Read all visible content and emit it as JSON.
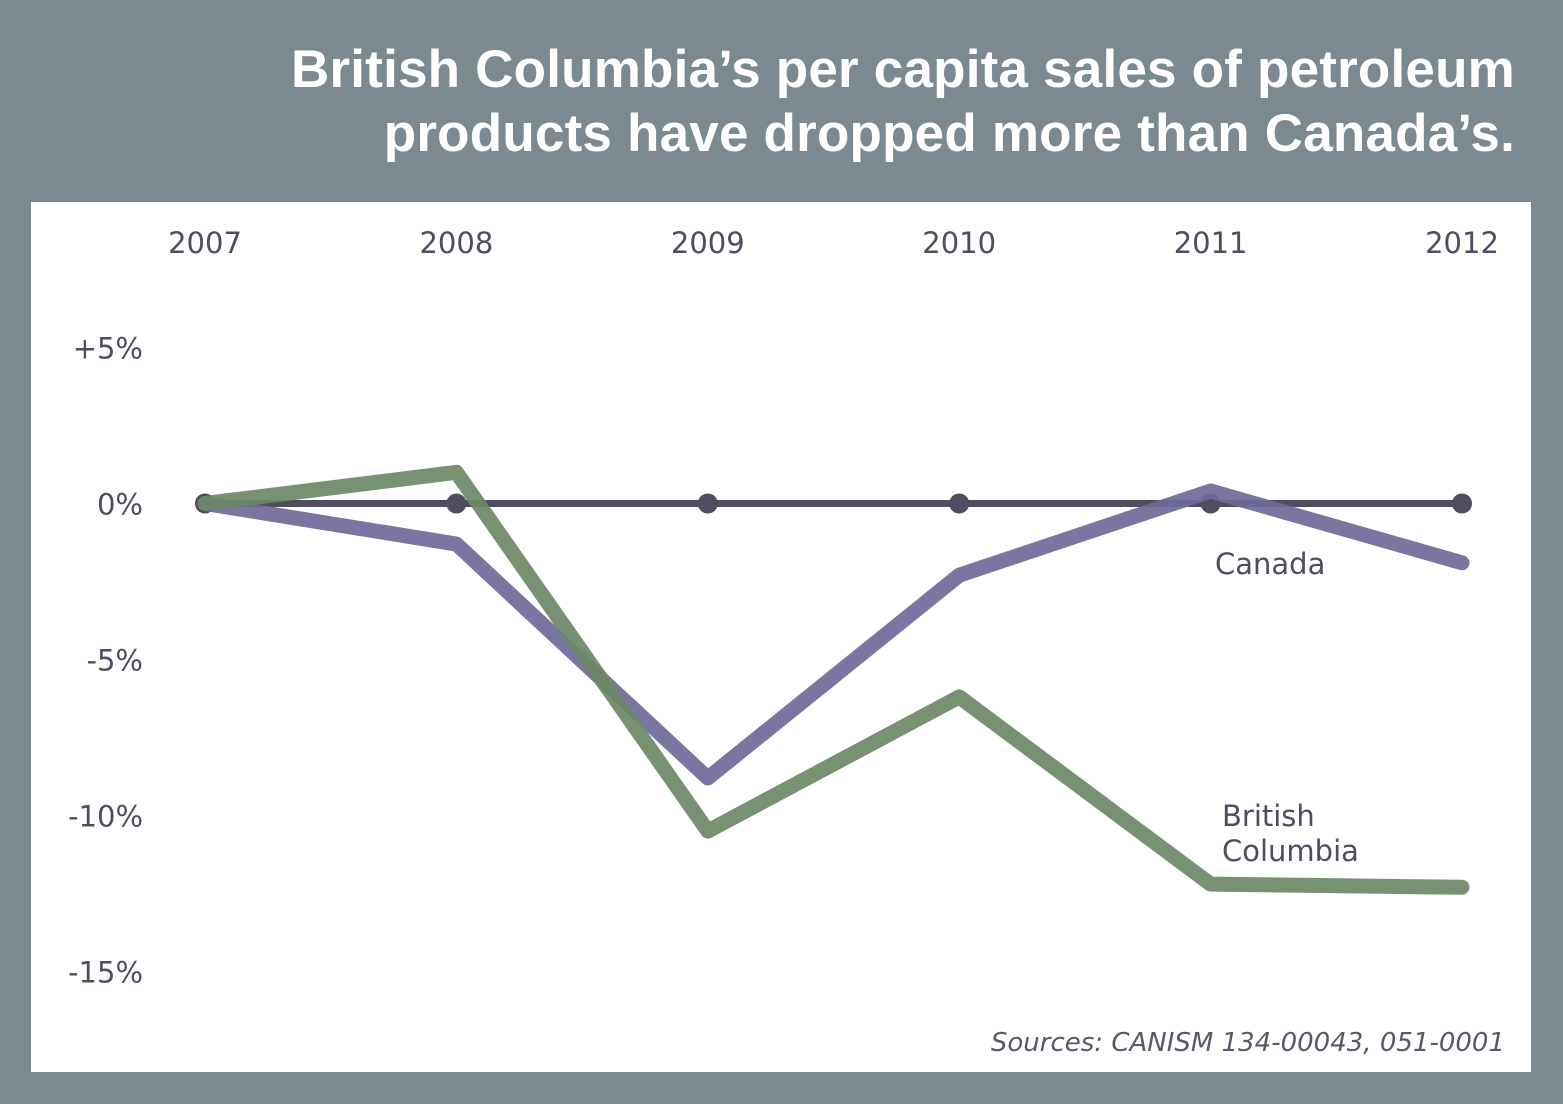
{
  "chart_data": {
    "type": "line",
    "title": "British Columbia’s per capita sales of petroleum products have dropped more than Canada’s.",
    "title_lines": [
      "British Columbia’s per capita sales of petroleum",
      "products have dropped more than Canada’s."
    ],
    "xlabel": "",
    "ylabel": "",
    "x": [
      "2007",
      "2008",
      "2009",
      "2010",
      "2011",
      "2012"
    ],
    "x_tick_position": "top",
    "ylim": [
      -15,
      5
    ],
    "y_ticks": [
      5,
      0,
      -5,
      -10,
      -15
    ],
    "y_tick_labels": [
      "+5%",
      "0%",
      "-5%",
      "-10%",
      "-15%"
    ],
    "grid": false,
    "baseline": {
      "name": "Baseline (0%)",
      "value": 0,
      "color": "#4f4d5f",
      "markers": true
    },
    "series": [
      {
        "name": "Canada",
        "label": "Canada",
        "color": "#6f6a99",
        "values": [
          0,
          -1.3,
          -8.8,
          -2.3,
          0.4,
          -1.9
        ]
      },
      {
        "name": "British Columbia",
        "label_lines": [
          "British",
          "Columbia"
        ],
        "color": "#6b8866",
        "values": [
          0,
          1.0,
          -10.5,
          -6.2,
          -12.2,
          -12.3
        ]
      }
    ],
    "legend": "inline-labels-right",
    "source": "Sources: CANISM 134-00043, 051-0001"
  }
}
